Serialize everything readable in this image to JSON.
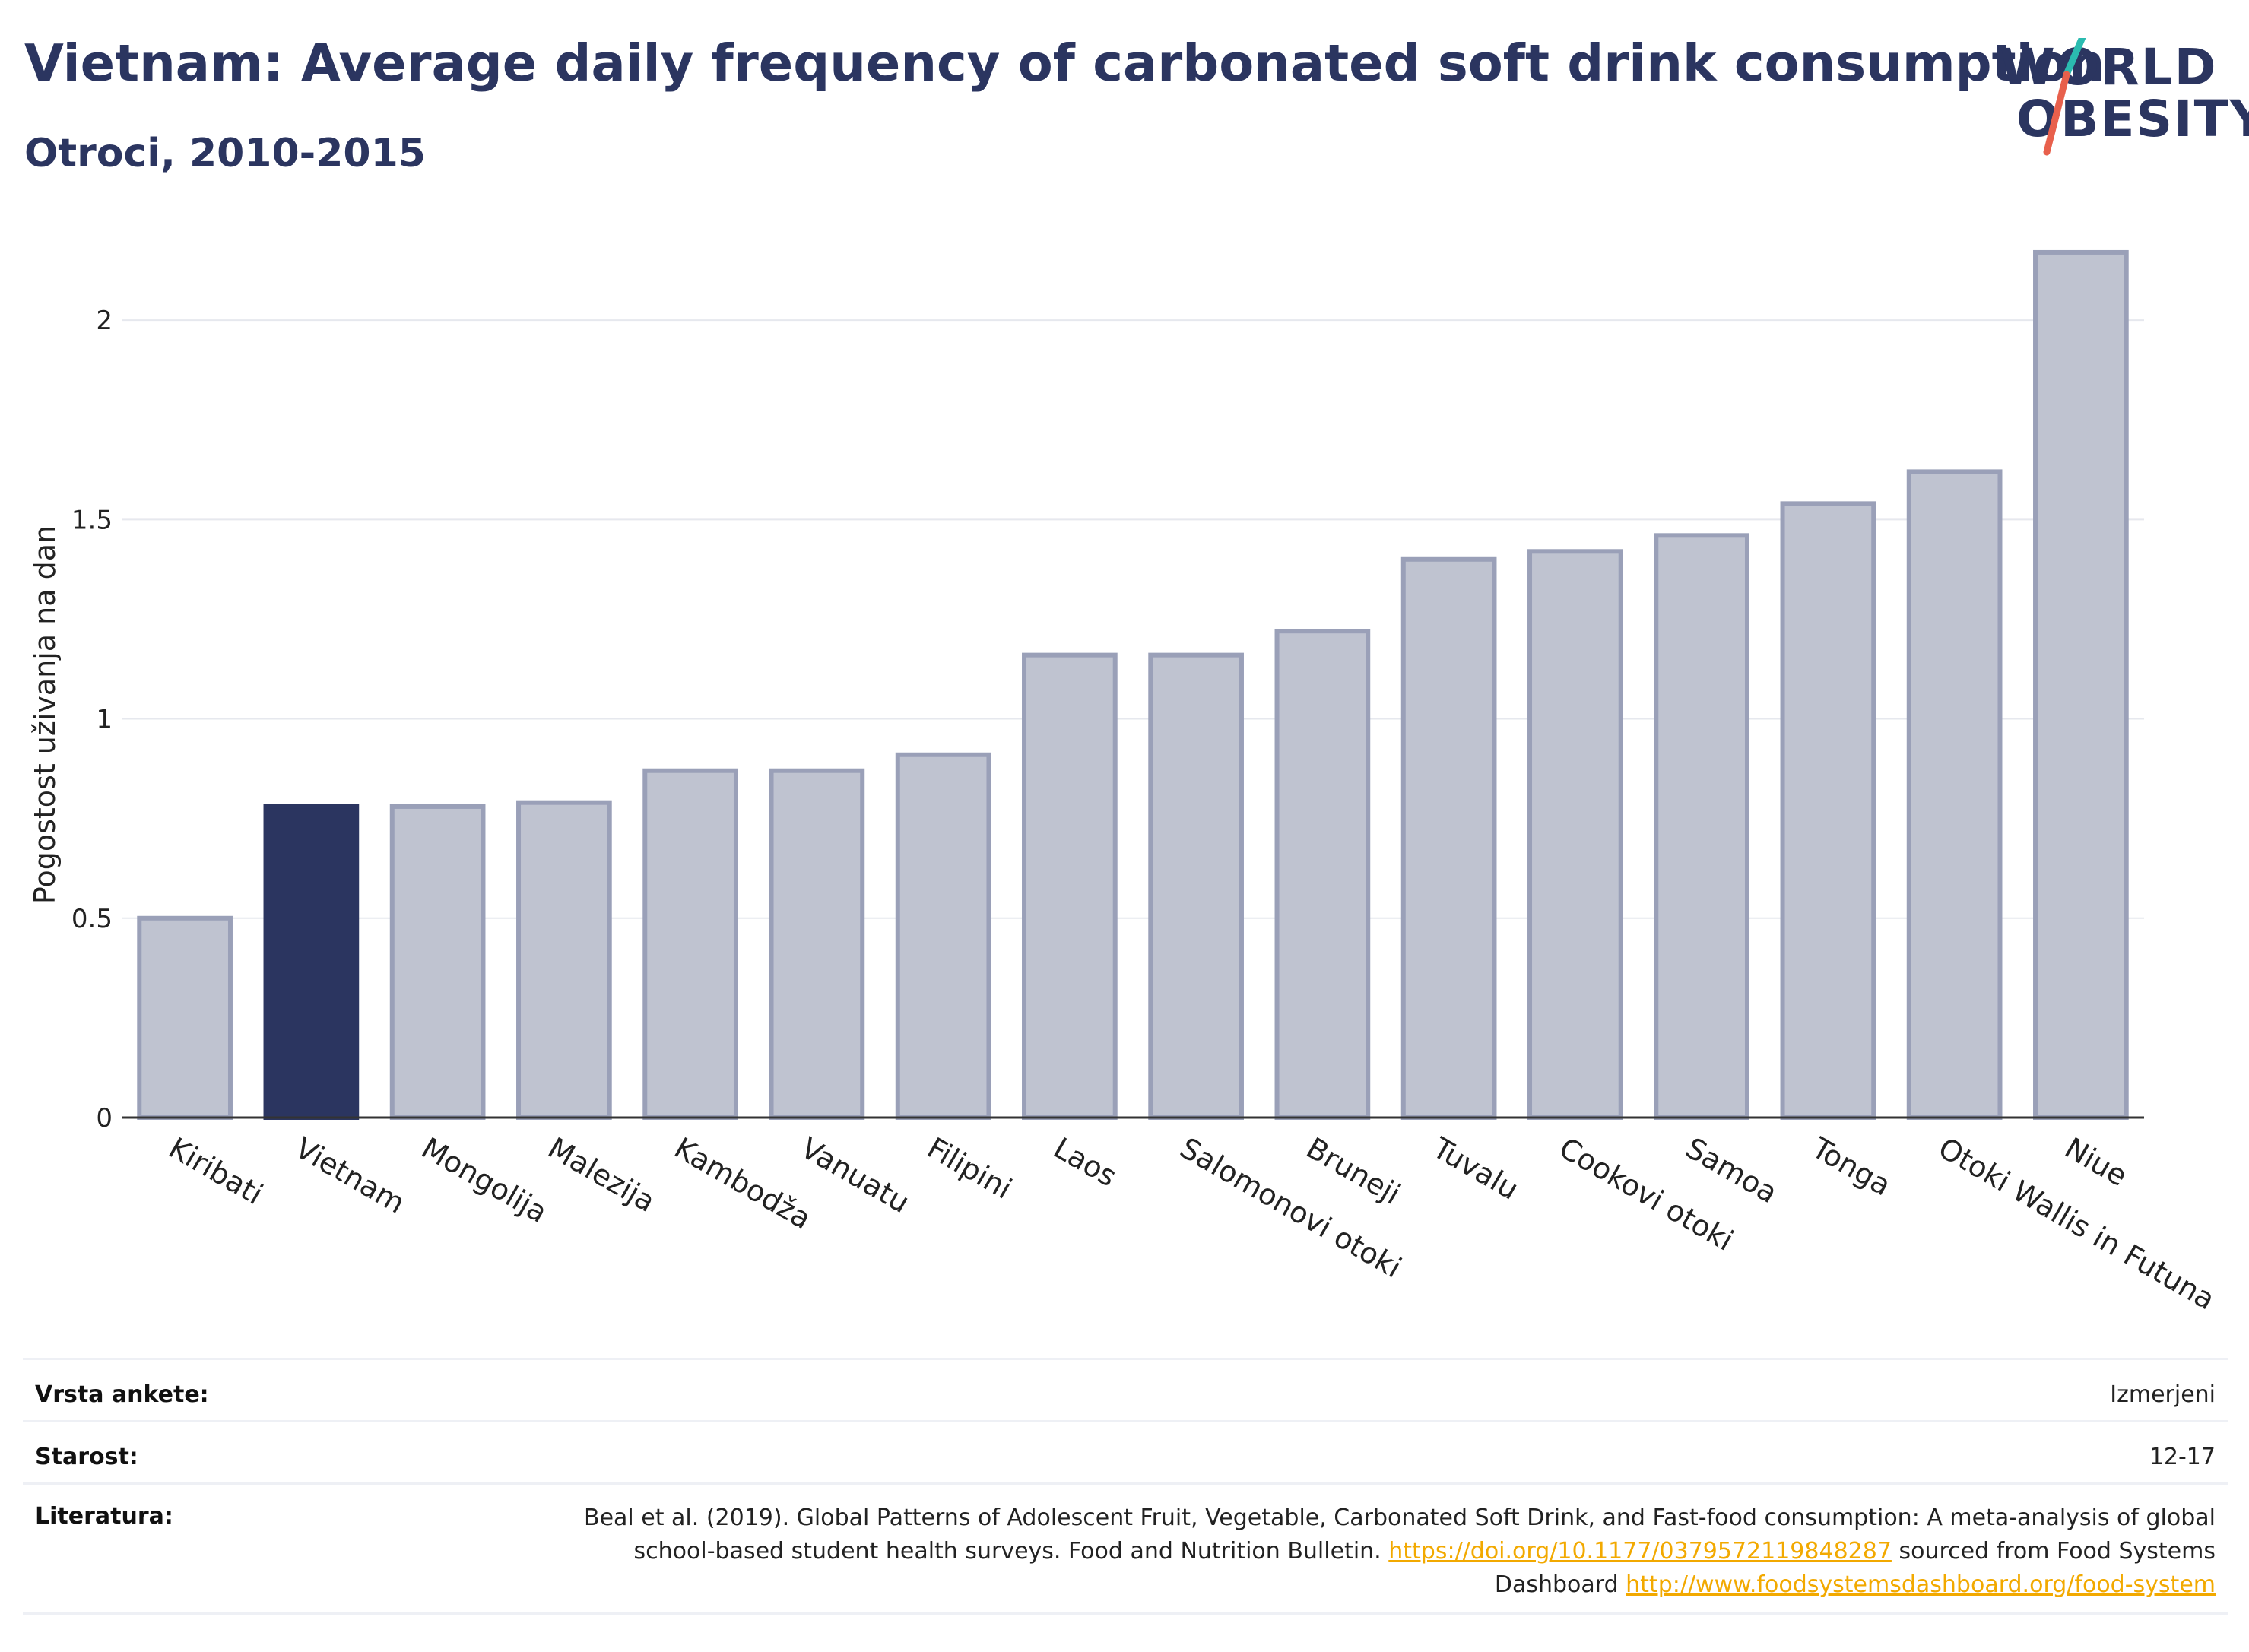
{
  "header": {
    "title": "Vietnam: Average daily frequency of carbonated soft drink consumption",
    "subtitle": "Otroci, 2010-2015",
    "logo_line1": "WORLD",
    "logo_line2": "OBESITY"
  },
  "chart_data": {
    "type": "bar",
    "ylabel": "Pogostost uživanja na dan",
    "ylim": [
      0,
      2.25
    ],
    "yticks": [
      0,
      0.5,
      1,
      1.5,
      2
    ],
    "ytick_labels": [
      "0",
      "0.5",
      "1",
      "1.5",
      "2"
    ],
    "grid": true,
    "categories": [
      "Kiribati",
      "Vietnam",
      "Mongolija",
      "Malezija",
      "Kambodža",
      "Vanuatu",
      "Filipini",
      "Laos",
      "Salomonovi otoki",
      "Bruneji",
      "Tuvalu",
      "Cookovi otoki",
      "Samoa",
      "Tonga",
      "Otoki Wallis in Futuna",
      "Niue"
    ],
    "values": [
      0.5,
      0.78,
      0.78,
      0.79,
      0.87,
      0.87,
      0.91,
      1.16,
      1.16,
      1.22,
      1.4,
      1.42,
      1.46,
      1.54,
      1.62,
      2.17
    ],
    "highlight": "Vietnam",
    "colors": {
      "highlight": "#2b3560",
      "other": "#bfc3d0",
      "other_border": "#9aa0b8"
    }
  },
  "meta": {
    "survey_label": "Vrsta ankete:",
    "survey_value": "Izmerjeni",
    "age_label": "Starost:",
    "age_value": "12-17",
    "lit_label": "Literatura:",
    "lit_text1": "Beal et al. (2019). Global Patterns of Adolescent Fruit, Vegetable, Carbonated Soft Drink, and Fast-food consumption: A meta-analysis of global school-based student health surveys. Food and Nutrition Bulletin. ",
    "lit_link1": "https://doi.org/10.1177/0379572119848287",
    "lit_text2": " sourced from Food Systems Dashboard ",
    "lit_link2": "http://www.foodsystemsdashboard.org/food-system"
  }
}
